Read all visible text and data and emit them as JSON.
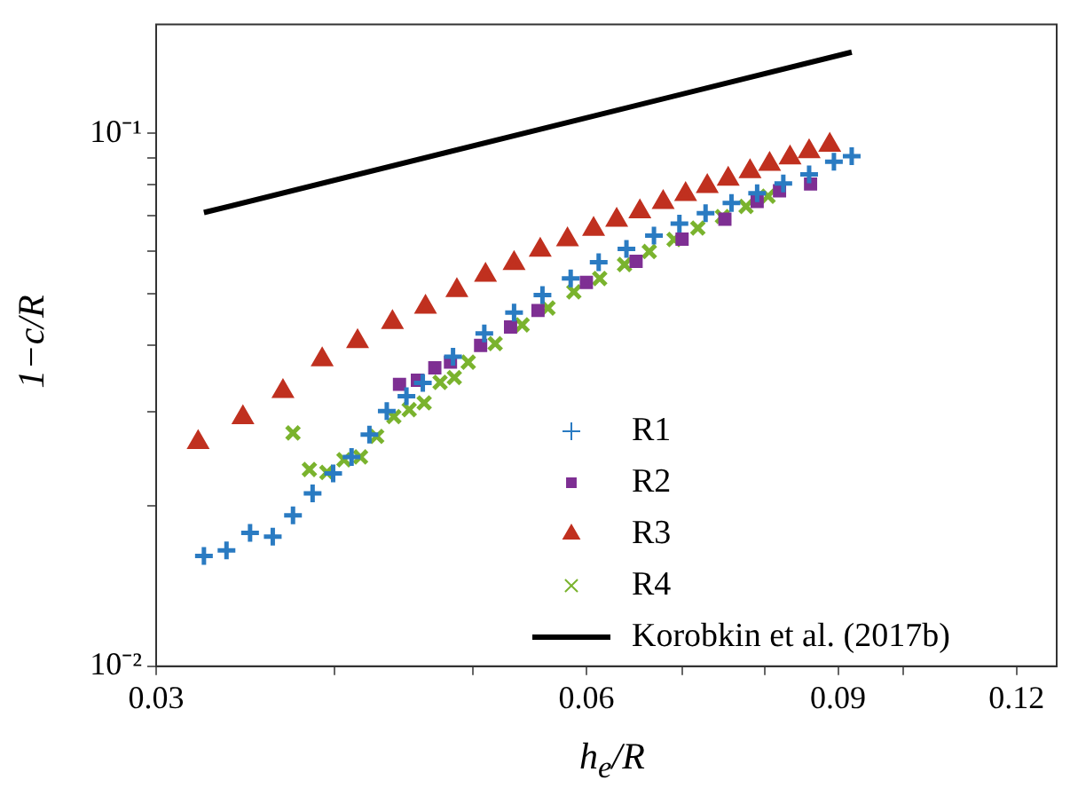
{
  "chart_data": {
    "type": "scatter",
    "xlabel": "h$_{e}$/R",
    "ylabel": "1−c/R",
    "log": "xy",
    "grid": false,
    "legend": "bottom right",
    "xlim": [
      0.03,
      0.128
    ],
    "ylim": [
      0.01,
      0.16
    ],
    "xticks": [
      0.03,
      {
        "value": 0.04,
        "label": null
      },
      {
        "value": 0.05,
        "label": null
      },
      0.06,
      {
        "value": 0.07,
        "label": null
      },
      {
        "value": 0.08,
        "label": null
      },
      0.09,
      {
        "value": 0.1,
        "label": null
      },
      0.12
    ],
    "yticks": [
      {
        "value": 0.01,
        "label": "10⁻²"
      },
      {
        "value": 0.02,
        "label": null
      },
      {
        "value": 0.03,
        "label": null
      },
      {
        "value": 0.04,
        "label": null
      },
      {
        "value": 0.05,
        "label": null
      },
      {
        "value": 0.06,
        "label": null
      },
      {
        "value": 0.07,
        "label": null
      },
      {
        "value": 0.08,
        "label": null
      },
      {
        "value": 0.09,
        "label": null
      },
      {
        "value": 0.1,
        "label": "10⁻¹"
      }
    ],
    "series": [
      {
        "name": "R1",
        "color": "#2a7bc2",
        "marker": "plus",
        "x": [
          0.0324,
          0.0336,
          0.0349,
          0.0362,
          0.0374,
          0.0386,
          0.0399,
          0.0411,
          0.0423,
          0.0435,
          0.0449,
          0.0461,
          0.0484,
          0.0509,
          0.0534,
          0.0559,
          0.0585,
          0.0612,
          0.064,
          0.0669,
          0.0697,
          0.0727,
          0.0758,
          0.079,
          0.0824,
          0.0859,
          0.0894,
          0.092
        ],
        "values": [
          0.0161,
          0.0165,
          0.0178,
          0.0175,
          0.0192,
          0.0211,
          0.023,
          0.0247,
          0.0272,
          0.0301,
          0.0321,
          0.034,
          0.0381,
          0.0421,
          0.0461,
          0.0497,
          0.0534,
          0.0573,
          0.0607,
          0.0643,
          0.0677,
          0.0708,
          0.074,
          0.0772,
          0.0805,
          0.0837,
          0.0884,
          0.0906
        ]
      },
      {
        "name": "R2",
        "color": "#7e2f93",
        "marker": "square",
        "x": [
          0.0444,
          0.0457,
          0.047,
          0.0482,
          0.0506,
          0.0531,
          0.0555,
          0.06,
          0.065,
          0.07,
          0.075,
          0.079,
          0.0819,
          0.0861
        ],
        "values": [
          0.0338,
          0.0344,
          0.0363,
          0.0372,
          0.04,
          0.0433,
          0.0465,
          0.0525,
          0.0575,
          0.0633,
          0.069,
          0.0745,
          0.078,
          0.0803
        ]
      },
      {
        "name": "R3",
        "color": "#c0301f",
        "marker": "triangle",
        "x": [
          0.0321,
          0.0345,
          0.0368,
          0.0392,
          0.0415,
          0.0439,
          0.0463,
          0.0487,
          0.051,
          0.0534,
          0.0557,
          0.0582,
          0.0607,
          0.063,
          0.0654,
          0.0679,
          0.0704,
          0.0729,
          0.0754,
          0.0781,
          0.0806,
          0.0833,
          0.0859,
          0.0888
        ],
        "values": [
          0.0263,
          0.0293,
          0.0328,
          0.0376,
          0.0407,
          0.0442,
          0.0472,
          0.0507,
          0.0542,
          0.057,
          0.0604,
          0.0632,
          0.0661,
          0.0687,
          0.0713,
          0.0742,
          0.0768,
          0.0795,
          0.0821,
          0.0848,
          0.0875,
          0.09,
          0.0924,
          0.095
        ]
      },
      {
        "name": "R4",
        "color": "#7ab32e",
        "marker": "cross",
        "x": [
          0.0374,
          0.0384,
          0.0395,
          0.0406,
          0.0417,
          0.0428,
          0.044,
          0.0451,
          0.0462,
          0.0474,
          0.0485,
          0.0496,
          0.0518,
          0.0541,
          0.0564,
          0.0588,
          0.0613,
          0.0638,
          0.0664,
          0.0691,
          0.0718,
          0.0747,
          0.0776,
          0.0804
        ],
        "values": [
          0.0274,
          0.0234,
          0.0231,
          0.0244,
          0.0247,
          0.027,
          0.0294,
          0.0303,
          0.0312,
          0.0341,
          0.0348,
          0.0372,
          0.0403,
          0.0437,
          0.047,
          0.0504,
          0.0534,
          0.0567,
          0.06,
          0.0632,
          0.0664,
          0.0698,
          0.0729,
          0.0762
        ]
      },
      {
        "name": "Korobkin et al. (2017b)",
        "color": "#000000",
        "type": "line",
        "marker": "none",
        "x": [
          0.0324,
          0.092
        ],
        "values": [
          0.071,
          0.142
        ]
      }
    ]
  }
}
